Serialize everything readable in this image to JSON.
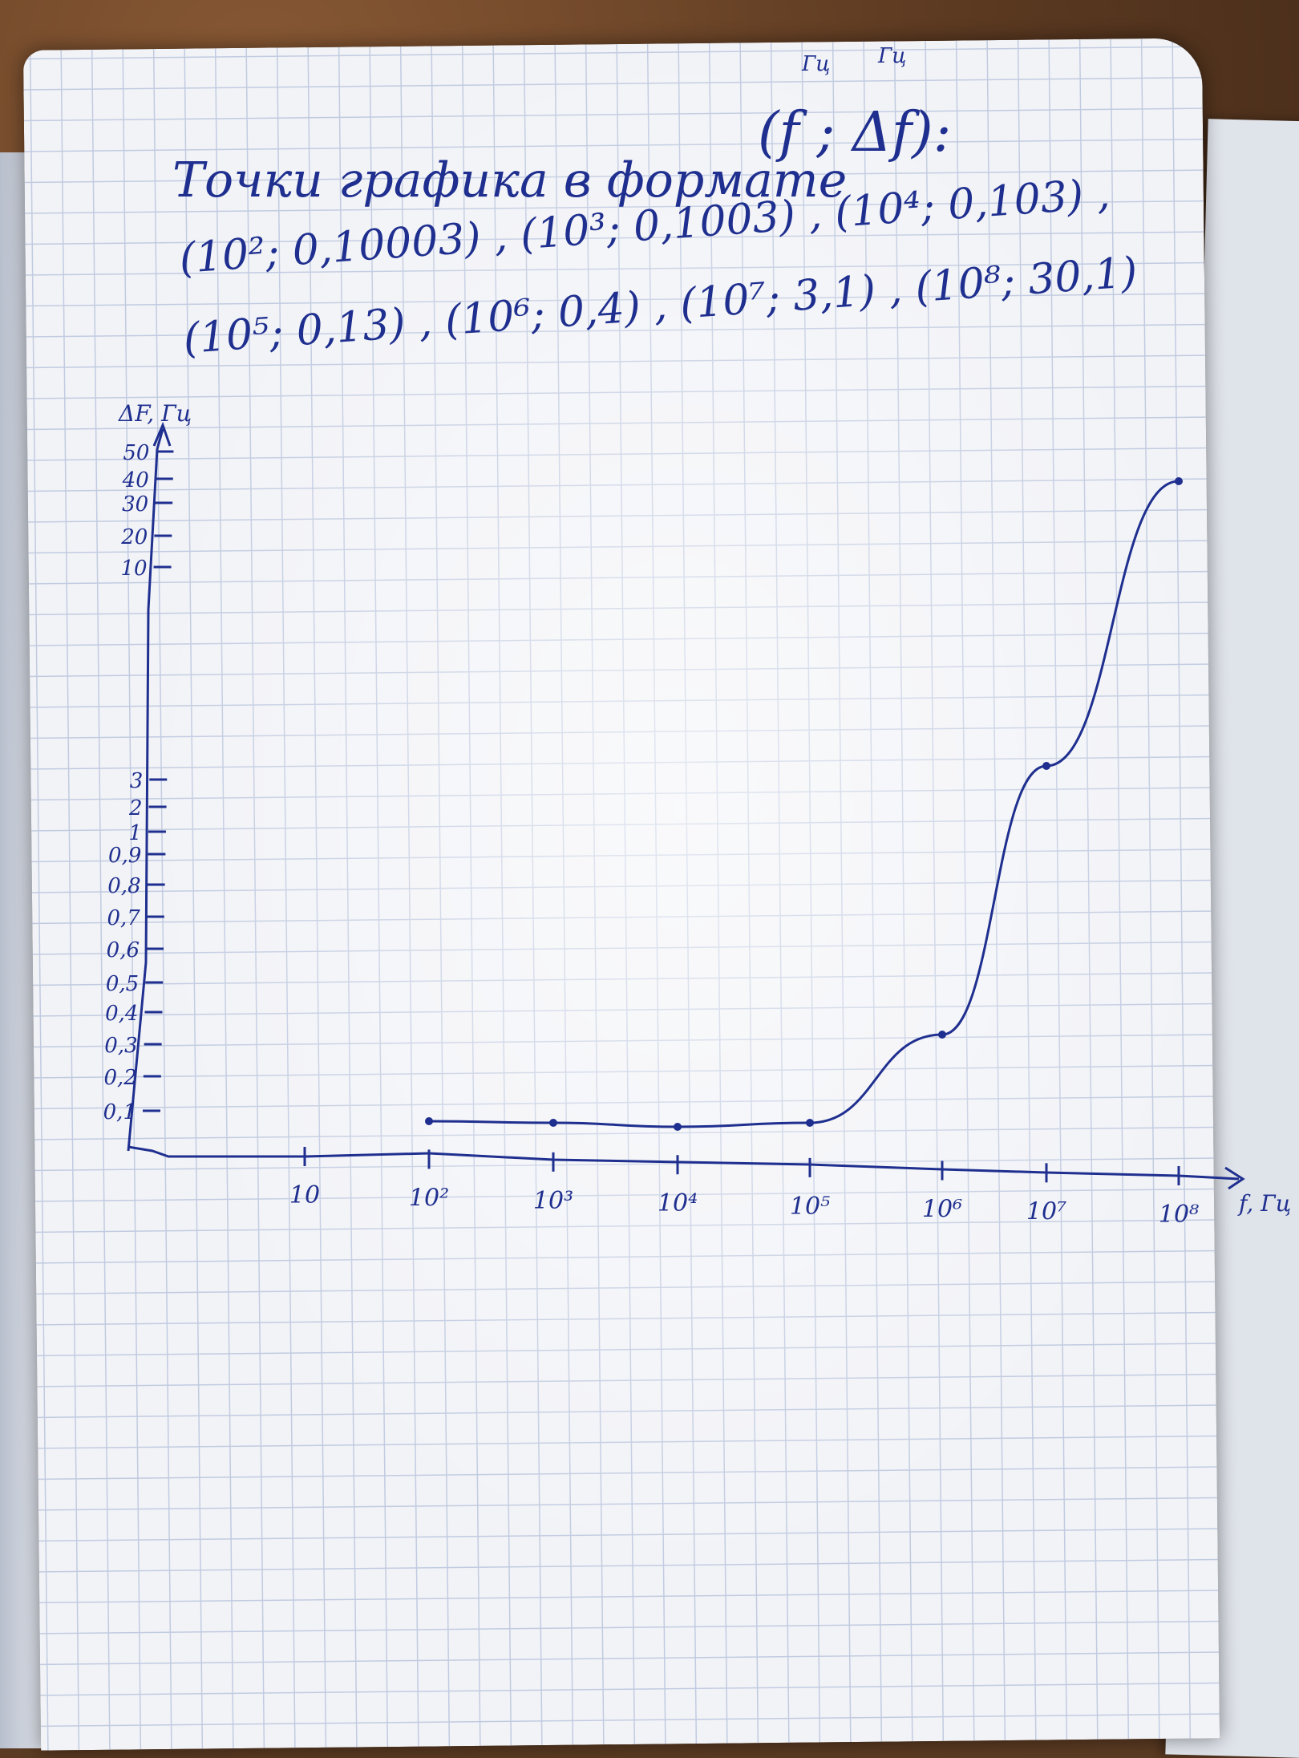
{
  "header": {
    "line1": "Точки графика в формате",
    "line1_format": "(f ; Δf):",
    "unit_f": "Гц",
    "unit_df": "Гц",
    "line2": "(10²; 0,10003) , (10³; 0,1003) , (10⁴; 0,103) ,",
    "line3": "(10⁵; 0,13) , (10⁶; 0,4) , (10⁷; 3,1) , (10⁸; 30,1)"
  },
  "axes": {
    "y_label": "ΔF, Гц",
    "x_label": "f, Гц",
    "y_ticks": [
      "50",
      "40",
      "30",
      "20",
      "10",
      "3",
      "2",
      "1",
      "0,9",
      "0,8",
      "0,7",
      "0,6",
      "0,5",
      "0,4",
      "0,3",
      "0,2",
      "0,1"
    ],
    "x_ticks": [
      "10",
      "10²",
      "10³",
      "10⁴",
      "10⁵",
      "10⁶",
      "10⁷",
      "10⁸"
    ]
  },
  "chart_data": {
    "type": "line",
    "x_scale": "log",
    "x": [
      100,
      1000,
      10000,
      100000,
      1000000,
      10000000,
      100000000
    ],
    "y": [
      0.10003,
      0.1003,
      0.103,
      0.13,
      0.4,
      3.1,
      30.1
    ],
    "xlabel": "f, Гц",
    "ylabel": "ΔF, Гц",
    "grid": true,
    "colors": {
      "ink": "#1f2f8f",
      "grid": "#c1cbe0",
      "paper": "#f2f3f7"
    }
  }
}
